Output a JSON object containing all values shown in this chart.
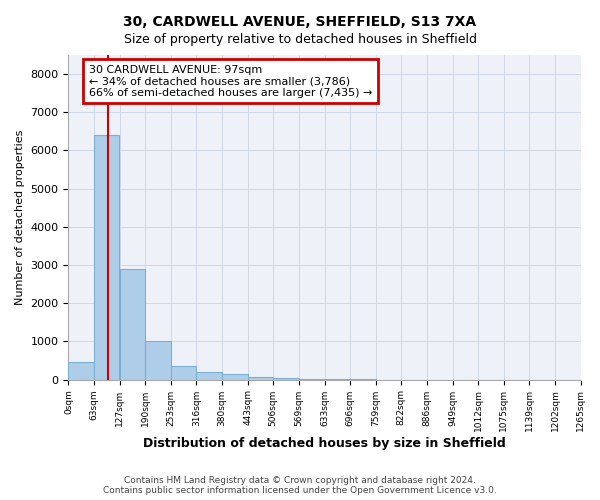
{
  "title": "30, CARDWELL AVENUE, SHEFFIELD, S13 7XA",
  "subtitle": "Size of property relative to detached houses in Sheffield",
  "xlabel": "Distribution of detached houses by size in Sheffield",
  "ylabel": "Number of detached properties",
  "annotation_line1": "30 CARDWELL AVENUE: 97sqm",
  "annotation_line2": "← 34% of detached houses are smaller (3,786)",
  "annotation_line3": "66% of semi-detached houses are larger (7,435) →",
  "property_size": 97,
  "bin_edges": [
    0,
    63,
    127,
    190,
    253,
    316,
    380,
    443,
    506,
    569,
    633,
    696,
    759,
    822,
    886,
    949,
    1012,
    1075,
    1139,
    1202,
    1265
  ],
  "bar_values": [
    450,
    6400,
    2900,
    1000,
    350,
    200,
    150,
    80,
    30,
    15,
    8,
    4,
    2,
    1,
    1,
    0,
    0,
    0,
    0,
    0
  ],
  "bar_color": "#aecde8",
  "bar_edge_color": "#7bafd4",
  "red_line_color": "#cc0000",
  "annotation_box_color": "#cc0000",
  "grid_color": "#d0d8e8",
  "bg_color": "#eef2f8",
  "ylim": [
    0,
    8500
  ],
  "yticks": [
    0,
    1000,
    2000,
    3000,
    4000,
    5000,
    6000,
    7000,
    8000
  ],
  "footnote1": "Contains HM Land Registry data © Crown copyright and database right 2024.",
  "footnote2": "Contains public sector information licensed under the Open Government Licence v3.0."
}
